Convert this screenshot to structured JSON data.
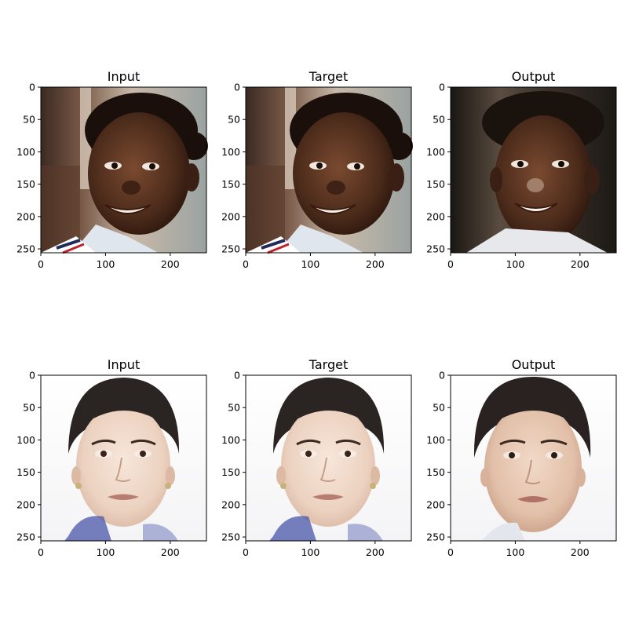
{
  "figure": {
    "rows": [
      {
        "name": "row-1",
        "panels": [
          {
            "title": "Input",
            "subject": "man-smiling",
            "background": "#a99b8a"
          },
          {
            "title": "Target",
            "subject": "man-smiling",
            "background": "#a99b8a"
          },
          {
            "title": "Output",
            "subject": "man-smiling-generated",
            "background": "#2b241f"
          }
        ]
      },
      {
        "name": "row-2",
        "panels": [
          {
            "title": "Input",
            "subject": "woman-portrait",
            "background": "#ffffff"
          },
          {
            "title": "Target",
            "subject": "woman-portrait",
            "background": "#ffffff"
          },
          {
            "title": "Output",
            "subject": "woman-portrait-generated",
            "background": "#f7f7f7"
          }
        ]
      }
    ],
    "axes": {
      "y_ticks": [
        "0",
        "50",
        "100",
        "150",
        "200",
        "250"
      ],
      "x_ticks": [
        "0",
        "100",
        "200"
      ],
      "image_size": [
        256,
        256
      ]
    }
  }
}
